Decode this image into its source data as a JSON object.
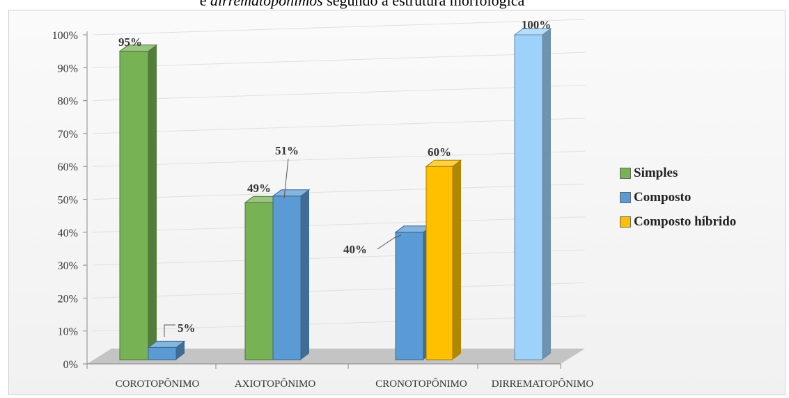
{
  "title": {
    "prefix": "e ",
    "italic": "dirrematopônimos",
    "suffix": " segundo a estrutura morfológica"
  },
  "colors": {
    "simples": "#77b255",
    "composto": "#5b9bd5",
    "composto_hibrido": "#ffc000",
    "composto_light": "#9dd2fb"
  },
  "chart_data": {
    "type": "bar",
    "title": "",
    "xlabel": "",
    "ylabel": "",
    "ylim": [
      0,
      100
    ],
    "yticks": [
      "0%",
      "10%",
      "20%",
      "30%",
      "40%",
      "50%",
      "60%",
      "70%",
      "80%",
      "90%",
      "100%"
    ],
    "categories": [
      "COROTOPÔNIMO",
      "AXIOTOPÔNIMO",
      "CRONOTOPÔNIMO",
      "DIRREMATOPÔNIMO"
    ],
    "series": [
      {
        "name": "Simples",
        "values": [
          95,
          49,
          null,
          null
        ],
        "labels": [
          "95%",
          "49%",
          "",
          ""
        ]
      },
      {
        "name": "Composto",
        "values": [
          5,
          51,
          40,
          100
        ],
        "labels": [
          "5%",
          "51%",
          "40%",
          "100%"
        ]
      },
      {
        "name": "Composto híbrido",
        "values": [
          null,
          null,
          60,
          null
        ],
        "labels": [
          "",
          "",
          "60%",
          ""
        ]
      }
    ],
    "legend_position": "right",
    "grid": true
  }
}
